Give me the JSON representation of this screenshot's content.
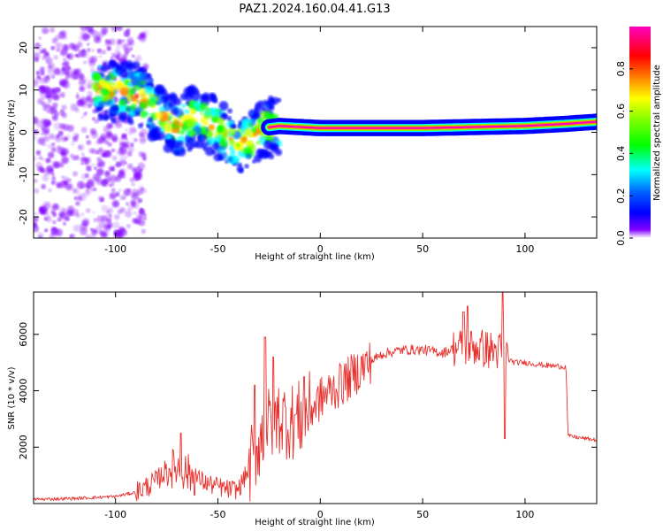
{
  "chart_data": [
    {
      "type": "heatmap",
      "title": "PAZ1.2024.160.04.41.G13",
      "xlabel": "Height of straight line (km)",
      "ylabel": "Frequency (Hz)",
      "xlim": [
        -140,
        135
      ],
      "ylim": [
        -25,
        25
      ],
      "xticks": [
        -100,
        -50,
        0,
        50,
        100
      ],
      "yticks": [
        -20,
        -10,
        0,
        10,
        20
      ],
      "colorbar": {
        "label": "Normalized spectral amplitude",
        "range": [
          0.0,
          1.0
        ],
        "ticks": [
          0.0,
          0.2,
          0.4,
          0.6,
          0.8
        ],
        "colormap": "gist_rainbow_r",
        "colors": [
          "#ff00bf",
          "#ff0000",
          "#ff8c00",
          "#ffff00",
          "#80ff00",
          "#00ff00",
          "#00ffff",
          "#0066ff",
          "#0000ff",
          "#8000ff",
          "#ffffff"
        ]
      },
      "centerline": [
        {
          "x": -140,
          "y": 22
        },
        {
          "x": -120,
          "y": 13
        },
        {
          "x": -105,
          "y": 10
        },
        {
          "x": -90,
          "y": 9
        },
        {
          "x": -80,
          "y": 5
        },
        {
          "x": -70,
          "y": 1
        },
        {
          "x": -60,
          "y": 4
        },
        {
          "x": -50,
          "y": 1
        },
        {
          "x": -42,
          "y": -3
        },
        {
          "x": -35,
          "y": -2
        },
        {
          "x": -28,
          "y": 1
        },
        {
          "x": -20,
          "y": 1.5
        },
        {
          "x": 0,
          "y": 1
        },
        {
          "x": 50,
          "y": 1
        },
        {
          "x": 100,
          "y": 1.5
        },
        {
          "x": 120,
          "y": 2
        },
        {
          "x": 135,
          "y": 2.5
        }
      ]
    },
    {
      "type": "line",
      "xlabel": "Height of straight line (km)",
      "ylabel": "SNR (10 * v/v)",
      "xlim": [
        -140,
        135
      ],
      "ylim": [
        0,
        7500
      ],
      "xticks": [
        -100,
        -50,
        0,
        50,
        100
      ],
      "yticks": [
        2000,
        4000,
        6000
      ],
      "color": "#e8302d",
      "x": [
        -140,
        -120,
        -100,
        -90,
        -80,
        -75,
        -70,
        -65,
        -60,
        -55,
        -50,
        -45,
        -40,
        -35,
        -30,
        -25,
        -20,
        -15,
        -10,
        -5,
        0,
        5,
        10,
        20,
        30,
        40,
        50,
        60,
        65,
        70,
        75,
        80,
        85,
        88,
        90,
        92,
        95,
        100,
        110,
        120,
        121,
        125,
        130,
        135
      ],
      "values": [
        150,
        180,
        250,
        400,
        800,
        1200,
        1300,
        1100,
        900,
        700,
        600,
        500,
        500,
        1200,
        2200,
        2800,
        3100,
        2900,
        3000,
        3300,
        3700,
        4000,
        4200,
        4800,
        5300,
        5450,
        5450,
        5350,
        5500,
        5550,
        5550,
        5500,
        5400,
        5400,
        5450,
        5100,
        5000,
        5000,
        4900,
        4850,
        2400,
        2350,
        2300,
        2250
      ],
      "spikes": [
        {
          "x": -68,
          "y": 2500
        },
        {
          "x": -32,
          "y": 4200
        },
        {
          "x": -27,
          "y": 5900
        },
        {
          "x": -23,
          "y": 5200
        },
        {
          "x": -8,
          "y": 4500
        },
        {
          "x": 10,
          "y": 4900
        },
        {
          "x": 70,
          "y": 6800
        },
        {
          "x": 72,
          "y": 7000
        },
        {
          "x": 89,
          "y": 7500
        },
        {
          "x": 90,
          "y": 2300
        }
      ]
    }
  ]
}
